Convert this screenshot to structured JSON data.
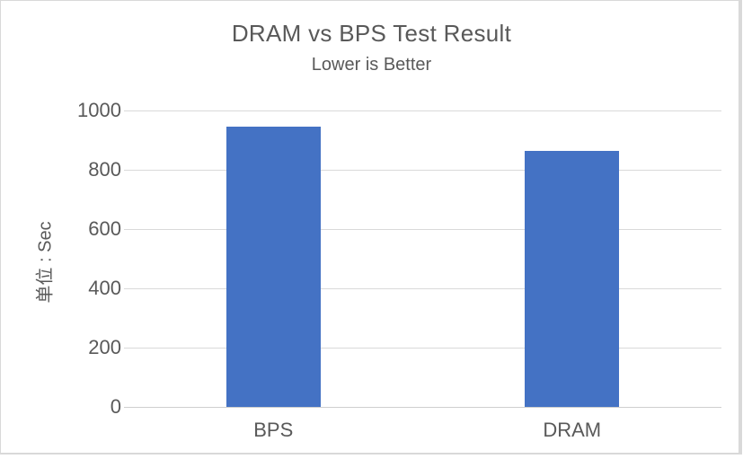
{
  "chart_data": {
    "type": "bar",
    "title": "DRAM vs BPS Test Result",
    "subtitle": "Lower is Better",
    "categories": [
      "BPS",
      "DRAM"
    ],
    "values": [
      945,
      863
    ],
    "xlabel": "",
    "ylabel": "单位 : Sec",
    "ylim": [
      0,
      1000
    ],
    "yticks": [
      0,
      200,
      400,
      600,
      800,
      1000
    ],
    "grid": true,
    "legend_position": "none",
    "bar_color": "#4472c4",
    "text_color": "#595959",
    "gridline_color": "#d9d9d9",
    "background_color": "#ffffff"
  }
}
